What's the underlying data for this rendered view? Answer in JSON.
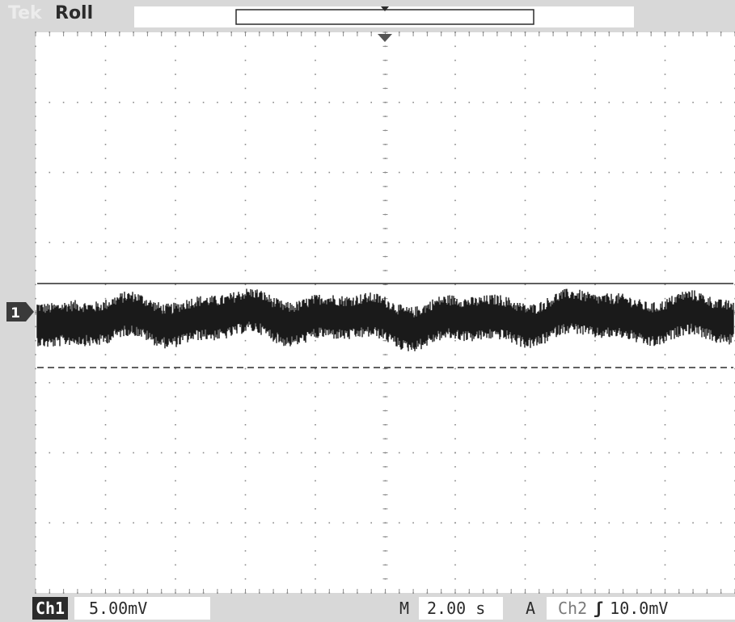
{
  "header": {
    "brand_ghost": "Tek",
    "acquisition_mode": "Roll"
  },
  "channel_marker": "1",
  "status": {
    "channel_badge": "Ch1",
    "channel_scale": "5.00mV",
    "timebase_prefix": "M",
    "timebase_value": "2.00 s",
    "trigger_prefix": "A",
    "trigger_source": "Ch2",
    "trigger_edge_symbol": "ʃ",
    "trigger_level": "10.0mV"
  },
  "colors": {
    "background": "#d8d8d8",
    "graticule": "#ffffff",
    "trace": "#1a1a1a",
    "text": "#2b2b2b"
  },
  "icons": {
    "trigger_position": "down-triangle-icon",
    "channel_ground": "channel-1-marker-icon",
    "trigger_slope": "rising-edge-icon"
  },
  "graticule": {
    "divisions_x": 10,
    "divisions_y": 8,
    "ch1_scale_mV_per_div": 5,
    "timebase_s_per_div": 2
  }
}
